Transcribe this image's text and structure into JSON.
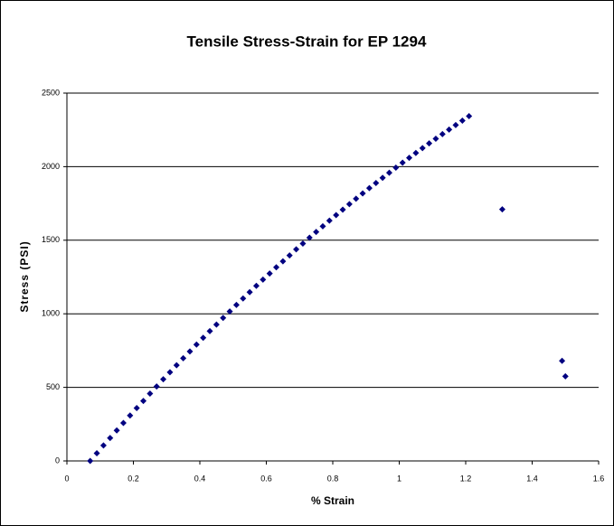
{
  "chart_data": {
    "type": "scatter",
    "title": "Tensile Stress-Strain for EP 1294",
    "x_label": "% Strain",
    "y_label": "Stress (PSI)",
    "series": [
      {
        "color": "#000080",
        "x": [
          0.07,
          0.09,
          0.11,
          0.13,
          0.15,
          0.17,
          0.19,
          0.21,
          0.23,
          0.25,
          0.27,
          0.29,
          0.31,
          0.33,
          0.35,
          0.37,
          0.39,
          0.41,
          0.43,
          0.45,
          0.47,
          0.49,
          0.51,
          0.53,
          0.55,
          0.57,
          0.59,
          0.61,
          0.63,
          0.65,
          0.67,
          0.69,
          0.71,
          0.73,
          0.75,
          0.77,
          0.79,
          0.81,
          0.83,
          0.85,
          0.87,
          0.89,
          0.91,
          0.93,
          0.95,
          0.97,
          0.99,
          1.01,
          1.03,
          1.05,
          1.07,
          1.09,
          1.11,
          1.13,
          1.15,
          1.17,
          1.19,
          1.21,
          1.31,
          1.49,
          1.5
        ],
        "values": [
          0,
          52,
          105,
          156,
          207,
          258,
          309,
          359,
          408,
          458,
          506,
          555,
          603,
          650,
          698,
          744,
          791,
          837,
          882,
          927,
          972,
          1016,
          1060,
          1104,
          1147,
          1190,
          1232,
          1274,
          1316,
          1357,
          1397,
          1438,
          1477,
          1517,
          1556,
          1595,
          1633,
          1671,
          1708,
          1745,
          1782,
          1818,
          1854,
          1889,
          1924,
          1959,
          1993,
          2027,
          2060,
          2093,
          2126,
          2158,
          2190,
          2221,
          2252,
          2283,
          2313,
          2343,
          1710,
          680,
          575
        ]
      }
    ],
    "xlim": [
      0,
      1.6
    ],
    "xticks": [
      0,
      0.2,
      0.4,
      0.6,
      0.8,
      1,
      1.2,
      1.4,
      1.6
    ],
    "ylim": [
      0,
      2500
    ],
    "yticks": [
      0,
      500,
      1000,
      1500,
      2000,
      2500
    ],
    "grid": true
  }
}
